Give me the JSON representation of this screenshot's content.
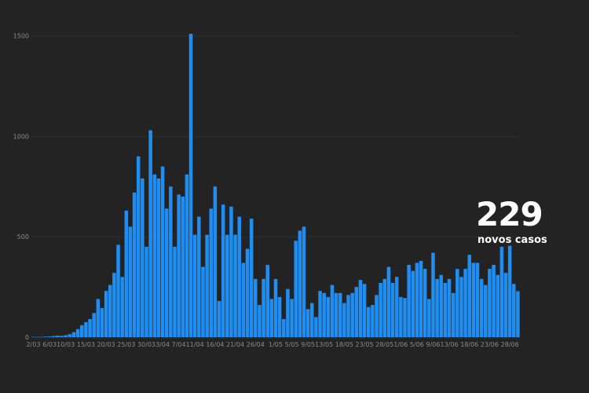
{
  "chart_data": {
    "type": "bar",
    "title": "",
    "xlabel": "",
    "ylabel": "",
    "ylim": [
      0,
      1600
    ],
    "yticks": [
      0,
      500,
      1000,
      1500
    ],
    "grid": true,
    "bar_color": "#1f8ef0",
    "xtick_labels": [
      {
        "index": 0,
        "label": "2/03"
      },
      {
        "index": 4,
        "label": "6/03"
      },
      {
        "index": 8,
        "label": "10/03"
      },
      {
        "index": 13,
        "label": "15/03"
      },
      {
        "index": 18,
        "label": "20/03"
      },
      {
        "index": 23,
        "label": "25/03"
      },
      {
        "index": 28,
        "label": "30/03"
      },
      {
        "index": 32,
        "label": "3/04"
      },
      {
        "index": 36,
        "label": "7/04"
      },
      {
        "index": 40,
        "label": "11/04"
      },
      {
        "index": 45,
        "label": "16/04"
      },
      {
        "index": 50,
        "label": "21/04"
      },
      {
        "index": 55,
        "label": "26/04"
      },
      {
        "index": 60,
        "label": "1/05"
      },
      {
        "index": 64,
        "label": "5/05"
      },
      {
        "index": 68,
        "label": "9/05"
      },
      {
        "index": 72,
        "label": "13/05"
      },
      {
        "index": 77,
        "label": "18/05"
      },
      {
        "index": 82,
        "label": "23/05"
      },
      {
        "index": 87,
        "label": "28/05"
      },
      {
        "index": 91,
        "label": "1/06"
      },
      {
        "index": 95,
        "label": "5/06"
      },
      {
        "index": 99,
        "label": "9/06"
      },
      {
        "index": 103,
        "label": "13/06"
      },
      {
        "index": 108,
        "label": "18/06"
      },
      {
        "index": 113,
        "label": "23/06"
      },
      {
        "index": 118,
        "label": "28/06"
      }
    ],
    "values": [
      2,
      1,
      2,
      3,
      4,
      6,
      8,
      7,
      10,
      15,
      25,
      40,
      60,
      75,
      90,
      120,
      190,
      145,
      230,
      260,
      320,
      460,
      300,
      630,
      550,
      720,
      900,
      790,
      450,
      1030,
      810,
      790,
      850,
      640,
      750,
      450,
      710,
      700,
      810,
      1510,
      510,
      600,
      350,
      510,
      640,
      750,
      180,
      660,
      510,
      650,
      510,
      600,
      370,
      440,
      590,
      290,
      160,
      290,
      360,
      190,
      290,
      200,
      90,
      240,
      190,
      480,
      530,
      550,
      140,
      170,
      100,
      230,
      220,
      200,
      260,
      220,
      220,
      170,
      210,
      220,
      250,
      285,
      265,
      150,
      160,
      210,
      270,
      290,
      350,
      270,
      300,
      200,
      195,
      360,
      330,
      370,
      380,
      340,
      190,
      420,
      290,
      310,
      270,
      290,
      220,
      340,
      300,
      340,
      410,
      370,
      370,
      290,
      260,
      340,
      360,
      310,
      450,
      320,
      455,
      265,
      229
    ]
  },
  "annotation": {
    "value": "229",
    "caption": "novos casos"
  }
}
